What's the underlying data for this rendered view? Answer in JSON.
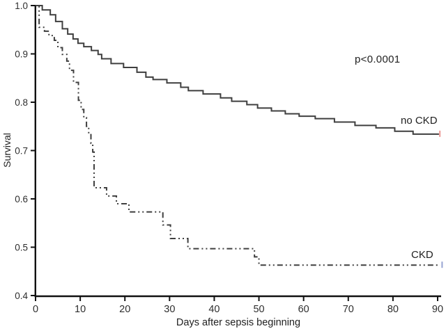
{
  "page": {
    "background": "#ffffff"
  },
  "chart_data": {
    "type": "line",
    "subtype": "kaplan-meier-step-survival",
    "title": "",
    "xlabel": "Days after sepsis beginning",
    "ylabel": "Survival",
    "xlim": [
      0,
      90
    ],
    "ylim": [
      0.4,
      1.0
    ],
    "xticks": [
      "0",
      "10",
      "20",
      "30",
      "40",
      "50",
      "60",
      "70",
      "80",
      "90"
    ],
    "yticks": [
      "1.0",
      "0.9",
      "0.8",
      "0.7",
      "0.6",
      "0.5",
      "0.4"
    ],
    "grid": false,
    "legend_position": "inline-curve-labels",
    "annotations": [
      {
        "text": "p<0.0001"
      }
    ],
    "axis_color": "#111111",
    "tick_label_color": "#2e2e2e",
    "series": [
      {
        "name": "no CKD",
        "line_style": "solid",
        "color": "#3f3f3f",
        "censor_mark": {
          "day": 90.5,
          "survival": 0.734,
          "color": "#ec9a96"
        },
        "points": [
          [
            0,
            1.0
          ],
          [
            1.5,
            0.991
          ],
          [
            3.3,
            0.981
          ],
          [
            4.5,
            0.967
          ],
          [
            6.0,
            0.952
          ],
          [
            7.2,
            0.941
          ],
          [
            8.4,
            0.931
          ],
          [
            9.5,
            0.922
          ],
          [
            10.8,
            0.915
          ],
          [
            12.5,
            0.907
          ],
          [
            14.0,
            0.899
          ],
          [
            14.8,
            0.89
          ],
          [
            16.9,
            0.88
          ],
          [
            19.7,
            0.872
          ],
          [
            22.7,
            0.862
          ],
          [
            24.7,
            0.852
          ],
          [
            26.3,
            0.847
          ],
          [
            29.4,
            0.84
          ],
          [
            32.5,
            0.831
          ],
          [
            34.2,
            0.824
          ],
          [
            37.5,
            0.817
          ],
          [
            41.4,
            0.809
          ],
          [
            43.9,
            0.802
          ],
          [
            47.3,
            0.795
          ],
          [
            49.7,
            0.788
          ],
          [
            52.8,
            0.782
          ],
          [
            55.9,
            0.776
          ],
          [
            59.0,
            0.771
          ],
          [
            62.6,
            0.766
          ],
          [
            66.9,
            0.759
          ],
          [
            71.5,
            0.752
          ],
          [
            76.2,
            0.747
          ],
          [
            80.4,
            0.74
          ],
          [
            84.5,
            0.734
          ],
          [
            90.3,
            0.734
          ]
        ]
      },
      {
        "name": "CKD",
        "line_style": "dash-dot-dot",
        "color": "#3f3f3f",
        "censor_mark": {
          "day": 91.0,
          "survival": 0.463,
          "color": "#96a3d2"
        },
        "points": [
          [
            0,
            1.0
          ],
          [
            0.8,
            0.955
          ],
          [
            2.0,
            0.947
          ],
          [
            3.0,
            0.938
          ],
          [
            4.2,
            0.928
          ],
          [
            5.0,
            0.913
          ],
          [
            6.0,
            0.899
          ],
          [
            7.0,
            0.885
          ],
          [
            7.6,
            0.866
          ],
          [
            8.5,
            0.841
          ],
          [
            9.6,
            0.804
          ],
          [
            10.2,
            0.785
          ],
          [
            10.8,
            0.768
          ],
          [
            11.4,
            0.75
          ],
          [
            11.9,
            0.733
          ],
          [
            12.4,
            0.715
          ],
          [
            12.8,
            0.697
          ],
          [
            13.1,
            0.623
          ],
          [
            15.9,
            0.606
          ],
          [
            18.1,
            0.59
          ],
          [
            20.9,
            0.573
          ],
          [
            28.5,
            0.546
          ],
          [
            30.2,
            0.518
          ],
          [
            34.1,
            0.497
          ],
          [
            49.0,
            0.48
          ],
          [
            50.0,
            0.463
          ],
          [
            90.6,
            0.463
          ]
        ]
      }
    ]
  }
}
